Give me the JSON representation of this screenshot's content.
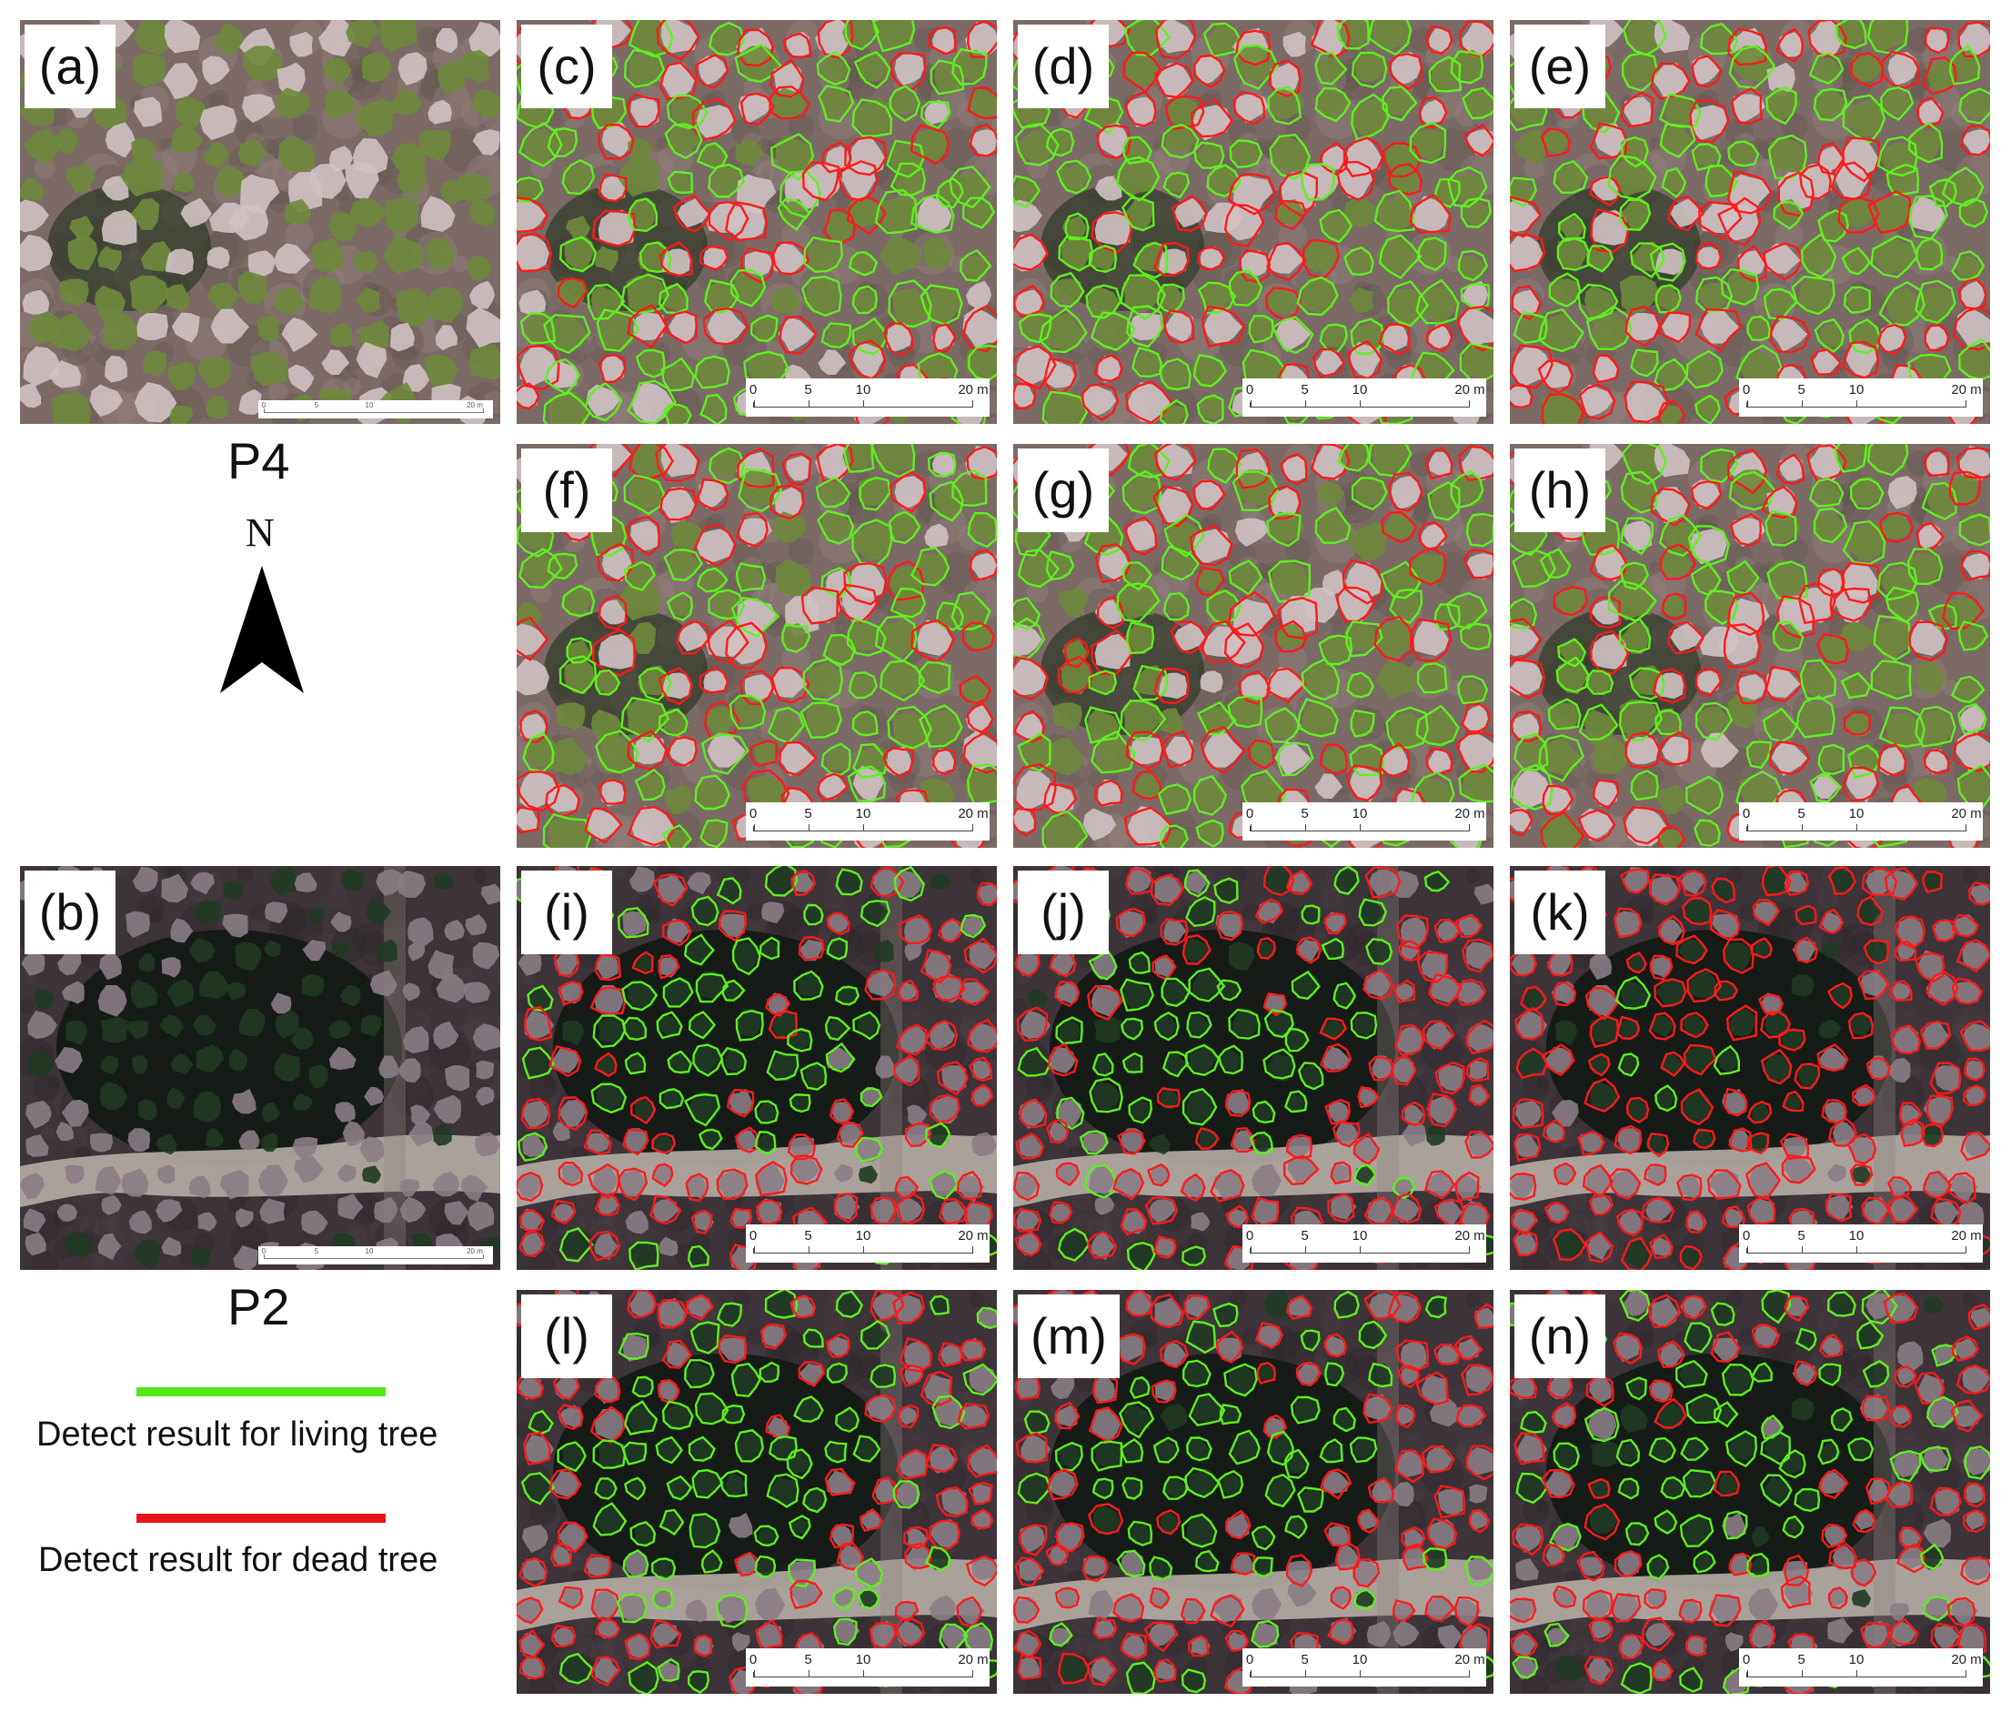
{
  "panels": [
    {
      "id": "a",
      "label": "(a)",
      "site": "P4",
      "variant": "p4",
      "overlay": "none"
    },
    {
      "id": "b",
      "label": "(b)",
      "site": "P2",
      "variant": "p2",
      "overlay": "none"
    },
    {
      "id": "c",
      "label": "(c)",
      "variant": "p4",
      "overlay": "mixed"
    },
    {
      "id": "d",
      "label": "(d)",
      "variant": "p4",
      "overlay": "mixed"
    },
    {
      "id": "e",
      "label": "(e)",
      "variant": "p4",
      "overlay": "mixed"
    },
    {
      "id": "f",
      "label": "(f)",
      "variant": "p4",
      "overlay": "mixed"
    },
    {
      "id": "g",
      "label": "(g)",
      "variant": "p4",
      "overlay": "mixed"
    },
    {
      "id": "h",
      "label": "(h)",
      "variant": "p4",
      "overlay": "mixed"
    },
    {
      "id": "i",
      "label": "(i)",
      "variant": "p2",
      "overlay": "mixed"
    },
    {
      "id": "j",
      "label": "(j)",
      "variant": "p2",
      "overlay": "mixed"
    },
    {
      "id": "k",
      "label": "(k)",
      "variant": "p2",
      "overlay": "mostly-dead"
    },
    {
      "id": "l",
      "label": "(l)",
      "variant": "p2",
      "overlay": "mostly-living"
    },
    {
      "id": "m",
      "label": "(m)",
      "variant": "p2",
      "overlay": "mixed"
    },
    {
      "id": "n",
      "label": "(n)",
      "variant": "p2",
      "overlay": "mixed"
    }
  ],
  "scale_bar": {
    "ticks": [
      "0",
      "5",
      "10",
      "20"
    ],
    "unit": "m"
  },
  "site_labels": {
    "p4": "P4",
    "p2": "P2"
  },
  "north_arrow": {
    "letter": "N"
  },
  "legend": {
    "living": {
      "label": "Detect result for living tree",
      "color": "#55e619"
    },
    "dead": {
      "label": "Detect result for dead tree",
      "color": "#e8141a"
    }
  },
  "colors": {
    "living_outline": "#5ef01e",
    "dead_outline": "#ff1a1a",
    "p4_ground": "#7b6a66",
    "p2_ground": "#3c3438",
    "path": "#bdb5ad"
  }
}
